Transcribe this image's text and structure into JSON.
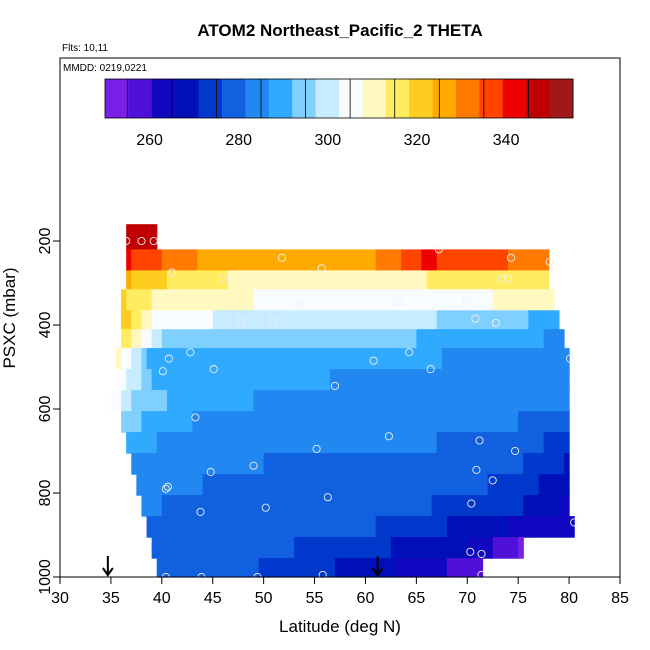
{
  "chart_data": {
    "type": "heatmap",
    "title": "ATOM2 Northeast_Pacific_2 THETA",
    "notes": [
      "Flts: 10,11",
      "MMDD: 0219,0221"
    ],
    "xlabel": "Latitude (deg N)",
    "ylabel": "PSXC (mbar)",
    "xlim": [
      30,
      85
    ],
    "ylim": [
      1000,
      0
    ],
    "xticks": [
      30,
      35,
      40,
      45,
      50,
      55,
      60,
      65,
      70,
      75,
      80,
      85
    ],
    "yticks": [
      200,
      400,
      600,
      800,
      1000
    ],
    "colorbar": {
      "range": [
        250,
        355
      ],
      "ticks": [
        260,
        280,
        300,
        320,
        340
      ],
      "location": "top",
      "colors": [
        "#7a1fe8",
        "#5010d8",
        "#1008c0",
        "#0010b8",
        "#0038cc",
        "#1060e0",
        "#2088f0",
        "#30aaff",
        "#80d0ff",
        "#c8ecff",
        "#f8fcff",
        "#fff8c0",
        "#ffec60",
        "#ffcc20",
        "#ffaa00",
        "#ff7a00",
        "#ff4400",
        "#ee0000",
        "#c00000",
        "#a01818"
      ]
    },
    "layers": [
      {
        "p": 190,
        "lat_min": 36.5,
        "lat_max": 39.5,
        "v": [
          [
            36.5,
            346
          ],
          [
            39.5,
            346
          ]
        ]
      },
      {
        "p": 250,
        "lat_min": 36.5,
        "lat_max": 78,
        "v": [
          [
            36.5,
            340
          ],
          [
            45,
            326
          ],
          [
            52,
            324
          ],
          [
            60,
            326
          ],
          [
            66,
            340
          ],
          [
            72,
            336
          ],
          [
            78,
            330
          ]
        ]
      },
      {
        "p": 290,
        "lat_min": 36.5,
        "lat_max": 78,
        "v": [
          [
            36.5,
            324
          ],
          [
            42,
            316
          ],
          [
            48,
            312
          ],
          [
            60,
            310
          ],
          [
            72,
            316
          ],
          [
            78,
            318
          ]
        ]
      },
      {
        "p": 340,
        "lat_min": 36,
        "lat_max": 78.5,
        "v": [
          [
            36,
            320
          ],
          [
            40,
            310
          ],
          [
            48,
            308
          ],
          [
            60,
            305
          ],
          [
            70,
            306
          ],
          [
            78.5,
            312
          ]
        ]
      },
      {
        "p": 390,
        "lat_min": 36,
        "lat_max": 79,
        "v": [
          [
            36,
            322
          ],
          [
            40,
            303
          ],
          [
            50,
            302
          ],
          [
            60,
            300
          ],
          [
            70,
            296
          ],
          [
            79,
            290
          ]
        ]
      },
      {
        "p": 430,
        "lat_min": 36,
        "lat_max": 79.5,
        "v": [
          [
            36,
            318
          ],
          [
            40,
            296
          ],
          [
            50,
            296
          ],
          [
            60,
            294
          ],
          [
            70,
            290
          ],
          [
            79.5,
            286
          ]
        ]
      },
      {
        "p": 480,
        "lat_min": 35.5,
        "lat_max": 80,
        "v": [
          [
            35.5,
            312
          ],
          [
            39,
            290
          ],
          [
            50,
            291
          ],
          [
            60,
            289
          ],
          [
            70,
            286
          ],
          [
            80,
            283
          ]
        ]
      },
      {
        "p": 530,
        "lat_min": 35.5,
        "lat_max": 80,
        "v": [
          [
            35.5,
            308
          ],
          [
            39,
            292
          ],
          [
            50,
            288
          ],
          [
            60,
            286
          ],
          [
            70,
            284
          ],
          [
            80,
            283
          ]
        ]
      },
      {
        "p": 580,
        "lat_min": 35,
        "lat_max": 80,
        "v": [
          [
            35,
            306
          ],
          [
            38,
            294
          ],
          [
            45,
            288
          ],
          [
            55,
            285
          ],
          [
            65,
            283
          ],
          [
            80,
            282
          ]
        ]
      },
      {
        "p": 630,
        "lat_min": 36,
        "lat_max": 80,
        "v": [
          [
            36,
            296
          ],
          [
            40,
            288
          ],
          [
            50,
            284
          ],
          [
            60,
            283
          ],
          [
            70,
            283
          ],
          [
            80,
            280
          ]
        ]
      },
      {
        "p": 680,
        "lat_min": 36.5,
        "lat_max": 80,
        "v": [
          [
            36.5,
            290
          ],
          [
            42,
            284
          ],
          [
            52,
            283
          ],
          [
            62,
            282
          ],
          [
            72,
            281
          ],
          [
            80,
            274
          ]
        ]
      },
      {
        "p": 730,
        "lat_min": 37,
        "lat_max": 80,
        "v": [
          [
            37,
            286
          ],
          [
            45,
            282
          ],
          [
            55,
            281
          ],
          [
            65,
            280
          ],
          [
            75,
            277
          ],
          [
            80,
            270
          ]
        ]
      },
      {
        "p": 780,
        "lat_min": 37.5,
        "lat_max": 80,
        "v": [
          [
            37.5,
            284
          ],
          [
            45,
            281
          ],
          [
            55,
            280
          ],
          [
            65,
            279
          ],
          [
            75,
            275
          ],
          [
            80,
            266
          ]
        ]
      },
      {
        "p": 830,
        "lat_min": 38,
        "lat_max": 80,
        "v": [
          [
            38,
            282
          ],
          [
            45,
            280
          ],
          [
            55,
            279
          ],
          [
            65,
            277
          ],
          [
            75,
            272
          ],
          [
            80,
            264
          ]
        ]
      },
      {
        "p": 880,
        "lat_min": 38.5,
        "lat_max": 80.5,
        "v": [
          [
            38.5,
            281
          ],
          [
            45,
            279
          ],
          [
            55,
            278
          ],
          [
            65,
            275
          ],
          [
            70,
            268
          ],
          [
            80.5,
            262
          ]
        ]
      },
      {
        "p": 930,
        "lat_min": 39,
        "lat_max": 75.5,
        "v": [
          [
            39,
            280
          ],
          [
            50,
            278
          ],
          [
            60,
            272
          ],
          [
            65,
            270
          ],
          [
            70,
            266
          ],
          [
            75.5,
            254
          ]
        ]
      },
      {
        "p": 980,
        "lat_min": 39.5,
        "lat_max": 71.5,
        "v": [
          [
            39.5,
            280
          ],
          [
            50,
            276
          ],
          [
            55,
            273
          ],
          [
            60,
            268
          ],
          [
            65,
            264
          ],
          [
            71.5,
            256
          ]
        ]
      }
    ],
    "points": [
      [
        36.5,
        200
      ],
      [
        38,
        200
      ],
      [
        39.2,
        200
      ],
      [
        51.8,
        240
      ],
      [
        67.2,
        220
      ],
      [
        74.3,
        240
      ],
      [
        78.1,
        250
      ],
      [
        41,
        275
      ],
      [
        46,
        290
      ],
      [
        55.7,
        265
      ],
      [
        73.4,
        290
      ],
      [
        74,
        290
      ],
      [
        53.5,
        355
      ],
      [
        63.2,
        345
      ],
      [
        69.9,
        345
      ],
      [
        47.8,
        390
      ],
      [
        50.9,
        390
      ],
      [
        70.8,
        385
      ],
      [
        72.8,
        395
      ],
      [
        40.7,
        480
      ],
      [
        42.8,
        465
      ],
      [
        40.1,
        510
      ],
      [
        45.1,
        505
      ],
      [
        60.8,
        485
      ],
      [
        64.3,
        465
      ],
      [
        66.4,
        505
      ],
      [
        57,
        545
      ],
      [
        43.3,
        620
      ],
      [
        80.1,
        480
      ],
      [
        71.2,
        675
      ],
      [
        62.3,
        665
      ],
      [
        55.2,
        695
      ],
      [
        49,
        735
      ],
      [
        44.8,
        750
      ],
      [
        70.9,
        745
      ],
      [
        74.7,
        700
      ],
      [
        72.5,
        770
      ],
      [
        40.4,
        790
      ],
      [
        40.6,
        785
      ],
      [
        56.3,
        810
      ],
      [
        70.4,
        825
      ],
      [
        43.8,
        845
      ],
      [
        50.2,
        835
      ],
      [
        80.5,
        870
      ],
      [
        70.3,
        940
      ],
      [
        71.4,
        945
      ],
      [
        40.4,
        1000
      ],
      [
        43.9,
        1000
      ],
      [
        49.4,
        1000
      ],
      [
        55.8,
        995
      ],
      [
        71.4,
        995
      ]
    ],
    "markers": [
      {
        "lat": 34.7,
        "type": "down-arrow"
      },
      {
        "lat": 61.2,
        "type": "down-arrow"
      }
    ]
  }
}
